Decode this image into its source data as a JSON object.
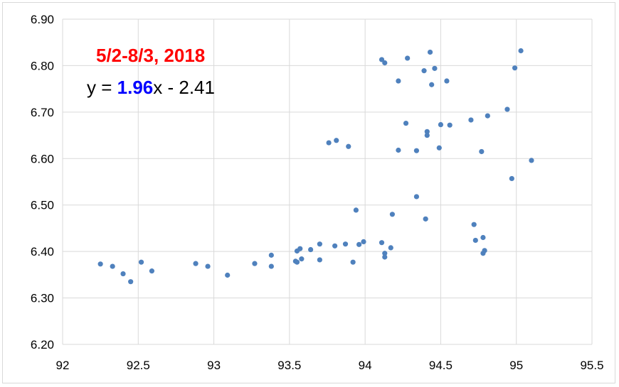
{
  "chart_data": {
    "type": "scatter",
    "title": "",
    "xlabel": "",
    "ylabel": "",
    "xlim": [
      92,
      95.5
    ],
    "ylim": [
      6.2,
      6.9
    ],
    "xticks": [
      "92",
      "92.5",
      "93",
      "93.5",
      "94",
      "94.5",
      "95",
      "95.5"
    ],
    "yticks": [
      "6.20",
      "6.30",
      "6.40",
      "6.50",
      "6.60",
      "6.70",
      "6.80",
      "6.90"
    ],
    "grid": true,
    "colors": {
      "points": "#4f81bd",
      "trendline": "#0000ff",
      "date_text": "#ff0000",
      "slope_text": "#0000ff",
      "grid": "#d9d9d9"
    },
    "annotations": {
      "date_range": "5/2-8/3, 2018",
      "equation_prefix": "y = ",
      "equation_slope": "1.96",
      "equation_suffix": "x - 2.41"
    },
    "trendline": {
      "style": "dotted",
      "slope": 1.96,
      "intercept": -2.41,
      "x_range": [
        92.25,
        95.1
      ]
    },
    "points": [
      [
        92.25,
        6.373
      ],
      [
        92.33,
        6.368
      ],
      [
        92.4,
        6.352
      ],
      [
        92.45,
        6.335
      ],
      [
        92.52,
        6.377
      ],
      [
        92.59,
        6.358
      ],
      [
        92.88,
        6.374
      ],
      [
        92.96,
        6.368
      ],
      [
        93.09,
        6.349
      ],
      [
        93.27,
        6.374
      ],
      [
        93.38,
        6.368
      ],
      [
        93.38,
        6.392
      ],
      [
        93.54,
        6.379
      ],
      [
        93.55,
        6.377
      ],
      [
        93.55,
        6.401
      ],
      [
        93.57,
        6.406
      ],
      [
        93.58,
        6.384
      ],
      [
        93.64,
        6.404
      ],
      [
        93.7,
        6.382
      ],
      [
        93.7,
        6.416
      ],
      [
        93.8,
        6.412
      ],
      [
        93.87,
        6.416
      ],
      [
        93.92,
        6.377
      ],
      [
        93.96,
        6.415
      ],
      [
        93.99,
        6.421
      ],
      [
        93.76,
        6.634
      ],
      [
        93.81,
        6.639
      ],
      [
        93.89,
        6.626
      ],
      [
        93.94,
        6.489
      ],
      [
        94.11,
        6.419
      ],
      [
        94.13,
        6.396
      ],
      [
        94.13,
        6.388
      ],
      [
        94.17,
        6.408
      ],
      [
        94.18,
        6.48
      ],
      [
        94.11,
        6.813
      ],
      [
        94.13,
        6.806
      ],
      [
        94.22,
        6.767
      ],
      [
        94.22,
        6.618
      ],
      [
        94.27,
        6.676
      ],
      [
        94.28,
        6.816
      ],
      [
        94.34,
        6.617
      ],
      [
        94.34,
        6.518
      ],
      [
        94.39,
        6.789
      ],
      [
        94.4,
        6.47
      ],
      [
        94.41,
        6.658
      ],
      [
        94.41,
        6.65
      ],
      [
        94.43,
        6.829
      ],
      [
        94.44,
        6.759
      ],
      [
        94.46,
        6.794
      ],
      [
        94.49,
        6.623
      ],
      [
        94.5,
        6.673
      ],
      [
        94.54,
        6.767
      ],
      [
        94.56,
        6.672
      ],
      [
        94.7,
        6.683
      ],
      [
        94.72,
        6.458
      ],
      [
        94.73,
        6.424
      ],
      [
        94.77,
        6.615
      ],
      [
        94.78,
        6.43
      ],
      [
        94.78,
        6.396
      ],
      [
        94.79,
        6.402
      ],
      [
        94.81,
        6.692
      ],
      [
        94.94,
        6.706
      ],
      [
        94.97,
        6.557
      ],
      [
        94.99,
        6.795
      ],
      [
        95.03,
        6.832
      ],
      [
        95.1,
        6.596
      ]
    ]
  }
}
